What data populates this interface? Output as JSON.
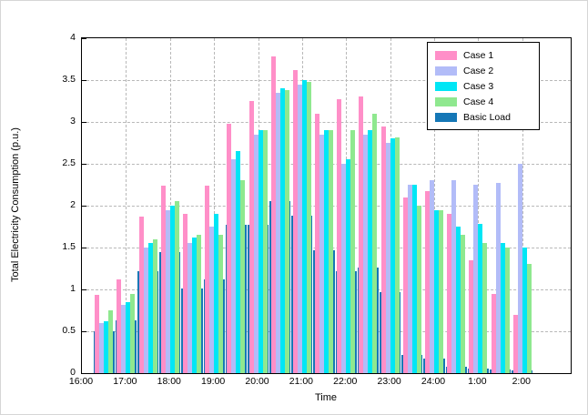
{
  "figure": {
    "background": "#ffffff"
  },
  "chart_data": {
    "type": "bar",
    "title": "",
    "xlabel": "Time",
    "ylabel": "Total Electricity Consumption (p.u.)",
    "ylim": [
      0,
      4
    ],
    "grid": "dashed",
    "legend_position": "top-right",
    "yticks": [
      "0",
      "0.5",
      "1",
      "1.5",
      "2",
      "2.5",
      "3",
      "3.5",
      "4"
    ],
    "xticks": [
      "16:00",
      "17:00",
      "18:00",
      "19:00",
      "20:00",
      "21:00",
      "22:00",
      "23:00",
      "24:00",
      "1:00",
      "2:00"
    ],
    "categories": [
      "16:30",
      "17:00",
      "17:30",
      "18:00",
      "18:30",
      "19:00",
      "19:30",
      "20:00",
      "20:30",
      "21:00",
      "21:30",
      "22:00",
      "22:30",
      "23:00",
      "23:30",
      "24:00",
      "0:30",
      "1:00",
      "1:30",
      "2:00"
    ],
    "series": [
      {
        "name": "Case 1",
        "color": "#ff8fc8",
        "values": [
          0.93,
          1.12,
          1.87,
          2.24,
          1.9,
          2.24,
          2.98,
          3.25,
          3.78,
          3.62,
          3.1,
          3.27,
          3.3,
          2.95,
          2.1,
          2.17,
          1.9,
          1.35,
          0.95,
          0.7
        ]
      },
      {
        "name": "Case 2",
        "color": "#b2bcf8",
        "values": [
          0.6,
          0.82,
          1.5,
          1.95,
          1.55,
          1.75,
          2.55,
          2.85,
          3.35,
          3.45,
          2.85,
          2.5,
          2.85,
          2.75,
          2.25,
          2.3,
          2.3,
          2.25,
          2.27,
          2.5
        ]
      },
      {
        "name": "Case 3",
        "color": "#00e6f5",
        "values": [
          0.62,
          0.85,
          1.55,
          2.0,
          1.62,
          1.9,
          2.65,
          2.9,
          3.4,
          3.5,
          2.9,
          2.55,
          2.9,
          2.8,
          2.25,
          1.95,
          1.75,
          1.78,
          1.55,
          1.5
        ]
      },
      {
        "name": "Case 4",
        "color": "#8fe88f",
        "values": [
          0.75,
          0.95,
          1.6,
          2.05,
          1.65,
          1.65,
          2.3,
          2.9,
          3.38,
          3.48,
          2.9,
          2.9,
          3.1,
          2.82,
          2.0,
          1.95,
          1.65,
          1.55,
          1.5,
          1.3
        ]
      },
      {
        "name": "Basic Load",
        "color": "#1577b6",
        "values": [
          0.5,
          0.63,
          1.22,
          1.45,
          1.01,
          1.12,
          1.77,
          1.77,
          2.05,
          1.88,
          1.47,
          1.22,
          1.26,
          0.97,
          0.22,
          0.17,
          0.08,
          0.05,
          0.04,
          0.03
        ]
      }
    ]
  }
}
